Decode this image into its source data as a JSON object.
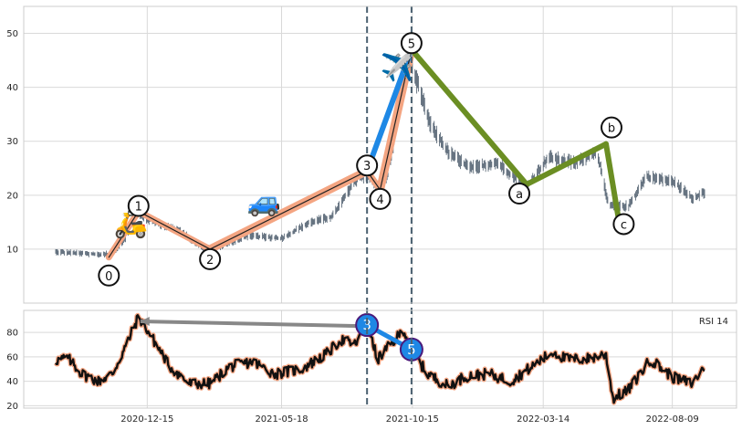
{
  "chart_data": [
    {
      "type": "line",
      "title": "",
      "xlabel": "",
      "ylabel": "",
      "ylim": [
        0,
        55
      ],
      "yticks": [
        10,
        20,
        30,
        40,
        50
      ],
      "grid": true,
      "dates": [
        "2020-09-01",
        "2022-09-15"
      ],
      "price_anchors": [
        [
          "2020-09-01",
          9.5
        ],
        [
          "2020-10-20",
          9.0
        ],
        [
          "2020-11-05",
          9.2
        ],
        [
          "2020-11-20",
          12.0
        ],
        [
          "2020-12-01",
          17.0
        ],
        [
          "2020-12-15",
          15.5
        ],
        [
          "2021-01-20",
          13.5
        ],
        [
          "2021-02-15",
          10.5
        ],
        [
          "2021-03-01",
          10.0
        ],
        [
          "2021-04-10",
          12.5
        ],
        [
          "2021-05-18",
          12.0
        ],
        [
          "2021-06-20",
          15.0
        ],
        [
          "2021-07-15",
          16.0
        ],
        [
          "2021-08-10",
          22.5
        ],
        [
          "2021-08-25",
          24.0
        ],
        [
          "2021-09-05",
          21.0
        ],
        [
          "2021-09-15",
          23.0
        ],
        [
          "2021-09-25",
          31.0
        ],
        [
          "2021-10-05",
          40.0
        ],
        [
          "2021-10-13",
          46.0
        ],
        [
          "2021-10-20",
          41.0
        ],
        [
          "2021-11-05",
          33.0
        ],
        [
          "2021-11-25",
          28.0
        ],
        [
          "2021-12-20",
          25.0
        ],
        [
          "2022-01-20",
          26.0
        ],
        [
          "2022-02-23",
          21.5
        ],
        [
          "2022-03-20",
          27.0
        ],
        [
          "2022-04-20",
          26.0
        ],
        [
          "2022-05-15",
          28.0
        ],
        [
          "2022-05-28",
          18.0
        ],
        [
          "2022-06-20",
          18.0
        ],
        [
          "2022-07-10",
          23.5
        ],
        [
          "2022-08-10",
          22.5
        ],
        [
          "2022-09-01",
          19.5
        ],
        [
          "2022-09-15",
          20.5
        ]
      ],
      "waves": {
        "impulse": [
          {
            "label": "0",
            "date": "2020-11-01",
            "value": 8.5
          },
          {
            "label": "1",
            "date": "2020-12-05",
            "value": 17.0
          },
          {
            "label": "2",
            "date": "2021-02-25",
            "value": 10.0
          },
          {
            "label": "3",
            "date": "2021-08-24",
            "value": 24.5
          },
          {
            "label": "4",
            "date": "2021-09-08",
            "value": 21.0
          },
          {
            "label": "5",
            "date": "2021-10-14",
            "value": 47.0
          }
        ],
        "correction": [
          {
            "label": "a",
            "date": "2022-02-23",
            "value": 22.0
          },
          {
            "label": "b",
            "date": "2022-05-25",
            "value": 29.5
          },
          {
            "label": "c",
            "date": "2022-06-08",
            "value": 16.0
          }
        ],
        "icons": [
          {
            "name": "scooter",
            "glyph": "🛵",
            "date": "2020-11-26",
            "value": 14.5
          },
          {
            "name": "car",
            "glyph": "🚙",
            "date": "2021-04-28",
            "value": 18.5
          },
          {
            "name": "plane",
            "glyph": "✈️",
            "date": "2021-09-28",
            "value": 43.5
          }
        ],
        "colors": {
          "first": "#f4a582",
          "third": "#1e88e5",
          "correction": "#6b8e23"
        }
      },
      "vlines": [
        "2021-08-24",
        "2021-10-14"
      ],
      "xticks": [
        "2020-12-15",
        "2021-05-18",
        "2021-10-15",
        "2022-03-14",
        "2022-08-09"
      ]
    },
    {
      "type": "line",
      "title": "",
      "legend": "RSI 14",
      "ylim": [
        18,
        98
      ],
      "yticks": [
        20,
        40,
        60,
        80
      ],
      "grid": true,
      "rsi_anchors": [
        [
          "2020-09-01",
          57
        ],
        [
          "2020-09-15",
          59
        ],
        [
          "2020-10-01",
          46
        ],
        [
          "2020-10-20",
          40
        ],
        [
          "2020-11-05",
          46
        ],
        [
          "2020-11-20",
          68
        ],
        [
          "2020-12-05",
          93
        ],
        [
          "2020-12-15",
          82
        ],
        [
          "2021-01-10",
          52
        ],
        [
          "2021-02-01",
          38
        ],
        [
          "2021-02-25",
          38
        ],
        [
          "2021-03-20",
          52
        ],
        [
          "2021-04-15",
          56
        ],
        [
          "2021-05-10",
          46
        ],
        [
          "2021-06-10",
          50
        ],
        [
          "2021-07-10",
          63
        ],
        [
          "2021-07-25",
          74
        ],
        [
          "2021-08-10",
          70
        ],
        [
          "2021-08-24",
          86
        ],
        [
          "2021-09-05",
          58
        ],
        [
          "2021-09-20",
          70
        ],
        [
          "2021-10-05",
          82
        ],
        [
          "2021-10-14",
          66
        ],
        [
          "2021-11-01",
          46
        ],
        [
          "2021-11-25",
          36
        ],
        [
          "2021-12-15",
          44
        ],
        [
          "2022-01-10",
          46
        ],
        [
          "2022-02-05",
          40
        ],
        [
          "2022-03-01",
          52
        ],
        [
          "2022-03-25",
          64
        ],
        [
          "2022-04-10",
          58
        ],
        [
          "2022-05-01",
          58
        ],
        [
          "2022-05-25",
          62
        ],
        [
          "2022-06-02",
          26
        ],
        [
          "2022-06-20",
          33
        ],
        [
          "2022-07-15",
          58
        ],
        [
          "2022-08-10",
          43
        ],
        [
          "2022-09-01",
          38
        ],
        [
          "2022-09-15",
          52
        ]
      ],
      "divergence": [
        {
          "date": "2020-12-05",
          "value": 89
        },
        {
          "date": "2021-08-24",
          "value": 86
        }
      ],
      "markers": [
        {
          "label": "3",
          "date": "2021-08-24",
          "value": 86
        },
        {
          "label": "5",
          "date": "2021-10-14",
          "value": 66
        }
      ]
    }
  ]
}
